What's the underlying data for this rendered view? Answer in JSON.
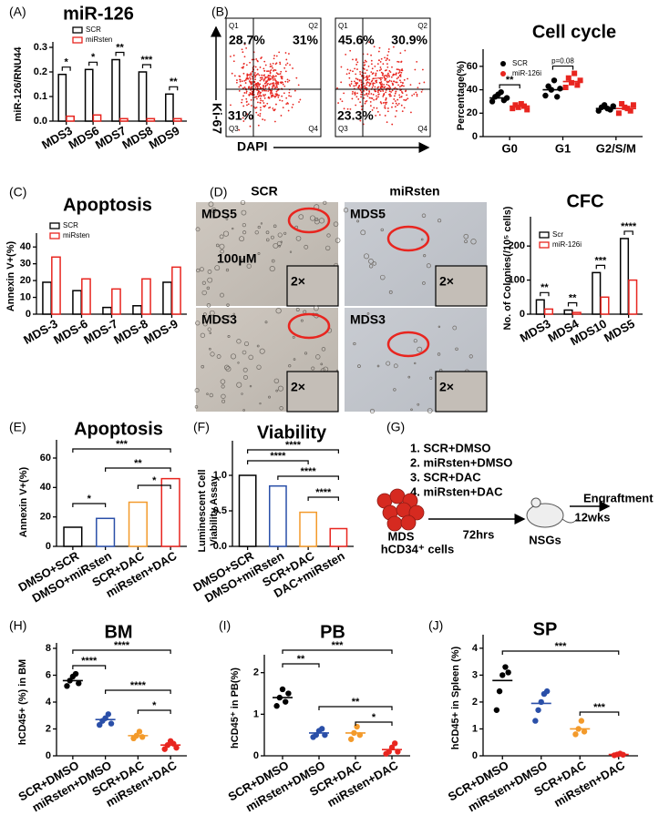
{
  "chart_data": [
    {
      "type": "bar",
      "panel_label": "(A)",
      "title": "miR-126",
      "y_label": "miR-126/RNU44",
      "categories": [
        "MDS3",
        "MDS6",
        "MDS7",
        "MDS8",
        "MDS9"
      ],
      "series": [
        {
          "name": "SCR",
          "color": "#000000",
          "values": [
            0.19,
            0.21,
            0.25,
            0.2,
            0.11
          ]
        },
        {
          "name": "miRsten",
          "color": "#e8251f",
          "values": [
            0.02,
            0.025,
            0.01,
            0.01,
            0.01
          ]
        }
      ],
      "ylim": [
        0,
        0.3
      ],
      "yticks": [
        {
          "value": 0,
          "label": "0.0"
        },
        {
          "value": 0.1,
          "label": "0.1"
        },
        {
          "value": 0.2,
          "label": "0.2"
        },
        {
          "value": 0.3,
          "label": "0.3"
        }
      ],
      "significance": [
        "*",
        "*",
        "**",
        "***",
        "**"
      ],
      "legend": "upper left"
    },
    {
      "type": "dot",
      "panel_label": "(B)",
      "title": "Cell cycle",
      "y_label": "Percentage(%)",
      "categories": [
        "G0",
        "G1",
        "G2/S/M"
      ],
      "series": [
        {
          "name": "SCR",
          "color": "#000000",
          "values": [
            33,
            40,
            24
          ],
          "points": [
            [
              30,
              34,
              36,
              38,
              31,
              33
            ],
            [
              35,
              43,
              40,
              48,
              34,
              41
            ],
            [
              22,
              25,
              27,
              24,
              23,
              26
            ]
          ]
        },
        {
          "name": "miR-126i",
          "color": "#e8251f",
          "values": [
            26,
            47,
            24
          ],
          "points": [
            [
              24,
              27,
              25,
              28,
              26,
              23
            ],
            [
              42,
              50,
              46,
              54,
              44,
              48
            ],
            [
              20,
              28,
              25,
              24,
              22,
              27
            ]
          ]
        }
      ],
      "ylim": [
        0,
        70
      ],
      "yticks": [
        0,
        20,
        40,
        60
      ],
      "significance": [
        "**",
        "p=0.08"
      ],
      "legend": "upper left"
    },
    {
      "type": "bar",
      "panel_label": "(C)",
      "title": "Apoptosis",
      "y_label": "Annexin V+(%)",
      "categories": [
        "MDS-3",
        "MDS-6",
        "MDS-7",
        "MDS-8",
        "MDS-9"
      ],
      "series": [
        {
          "name": "SCR",
          "color": "#000000",
          "values": [
            19,
            14,
            4,
            5,
            19
          ]
        },
        {
          "name": "miRsten",
          "color": "#e8251f",
          "values": [
            34,
            21,
            15,
            21,
            28
          ]
        }
      ],
      "ylim": [
        0,
        45
      ],
      "yticks": [
        0,
        10,
        20,
        30,
        40
      ],
      "legend": "upper left"
    },
    {
      "type": "bar",
      "panel_label": "(D)",
      "title": "CFC",
      "y_label": "No. of Colonies(/10⁵ cells)",
      "categories": [
        "MDS3",
        "MDS4",
        "MDS10",
        "MDS5"
      ],
      "series": [
        {
          "name": "Scr",
          "color": "#000000",
          "values": [
            42,
            12,
            122,
            222
          ]
        },
        {
          "name": "miR-126i",
          "color": "#e8251f",
          "values": [
            15,
            5,
            50,
            100
          ]
        }
      ],
      "ylim": [
        0,
        270
      ],
      "yticks": [
        0,
        100,
        200
      ],
      "significance": [
        "**",
        "**",
        "***",
        "****"
      ],
      "legend": "upper left"
    },
    {
      "type": "bar",
      "panel_label": "(E)",
      "title": "Apoptosis",
      "y_label": "Annexin V+(%)",
      "categories": [
        "DMSO+SCR",
        "DMSO+miRsten",
        "SCR+DAC",
        "miRsten+DAC"
      ],
      "values": [
        13,
        19,
        30,
        46
      ],
      "colors": [
        "#000000",
        "#2a4fa8",
        "#f39a2b",
        "#e8251f"
      ],
      "ylim": [
        0,
        60
      ],
      "yticks": [
        0,
        20,
        40,
        60
      ],
      "significance": [
        "***",
        "**",
        "*",
        "*"
      ]
    },
    {
      "type": "bar",
      "panel_label": "(F)",
      "title": "Viability",
      "y_label": [
        "Luminescent Cell",
        "Viability Assay"
      ],
      "categories": [
        "DMSO+SCR",
        "DMSO+miRsten",
        "SCR+DAC",
        "DAC+miRsten"
      ],
      "values": [
        1.0,
        0.85,
        0.48,
        0.25
      ],
      "colors": [
        "#000000",
        "#2a4fa8",
        "#f39a2b",
        "#e8251f"
      ],
      "ylim": [
        0,
        1
      ],
      "yticks": [
        {
          "value": 0,
          "label": "0.0"
        },
        {
          "value": 0.5,
          "label": "0.5"
        },
        {
          "value": 1,
          "label": "1.0"
        }
      ],
      "significance": [
        "****",
        "****",
        "****",
        "****"
      ]
    },
    {
      "type": "dot",
      "panel_label": "(H)",
      "title": "BM",
      "y_label": "hCD45+ (%) in BM",
      "categories": [
        "SCR+DMSO",
        "miRsten+DMSO",
        "SCR+DAC",
        "miRsten+DAC"
      ],
      "values": [
        5.6,
        2.7,
        1.5,
        0.8
      ],
      "colors": [
        "#000000",
        "#2a4fa8",
        "#f39a2b",
        "#e8251f"
      ],
      "points": [
        [
          5.2,
          5.6,
          5.9,
          6.1,
          5.4
        ],
        [
          2.3,
          2.6,
          2.8,
          3.1,
          2.4
        ],
        [
          1.3,
          1.5,
          1.8,
          1.4
        ],
        [
          0.5,
          0.8,
          1.1,
          0.9,
          0.6
        ]
      ],
      "ylim": [
        0,
        8
      ],
      "yticks": [
        0,
        2,
        4,
        6,
        8
      ],
      "significance": [
        "****",
        "****",
        "****",
        "*"
      ]
    },
    {
      "type": "dot",
      "panel_label": "(I)",
      "title": "PB",
      "y_label": "hCD45⁺ in PB(%)",
      "categories": [
        "SCR+DMSO",
        "miRsten+DMSO",
        "SCR+DAC",
        "miRsten+DAC"
      ],
      "values": [
        1.4,
        0.55,
        0.55,
        0.15
      ],
      "colors": [
        "#000000",
        "#2a4fa8",
        "#f39a2b",
        "#e8251f"
      ],
      "points": [
        [
          1.2,
          1.4,
          1.6,
          1.3,
          1.5
        ],
        [
          0.45,
          0.5,
          0.6,
          0.65,
          0.5
        ],
        [
          0.4,
          0.55,
          0.7,
          0.5
        ],
        [
          0.05,
          0.1,
          0.2,
          0.3,
          0.1
        ]
      ],
      "ylim": [
        0,
        2.3
      ],
      "yticks": [
        0,
        1,
        2
      ],
      "significance": [
        "***",
        "**",
        "**",
        "*"
      ]
    },
    {
      "type": "dot",
      "panel_label": "(J)",
      "title": "SP",
      "y_label": "hCD45+ in Spleen (%)",
      "categories": [
        "SCR+DMSO",
        "miRsten+DMSO",
        "SCR+DAC",
        "miRsten+DAC"
      ],
      "values": [
        2.8,
        1.95,
        1.0,
        0.05
      ],
      "colors": [
        "#000000",
        "#2a4fa8",
        "#f39a2b",
        "#e8251f"
      ],
      "points": [
        [
          1.7,
          2.4,
          3.0,
          3.3,
          3.1
        ],
        [
          1.3,
          1.7,
          2.0,
          2.3,
          2.4
        ],
        [
          0.8,
          1.0,
          1.3,
          0.9
        ],
        [
          0.02,
          0.05,
          0.08,
          0.04
        ]
      ],
      "ylim": [
        0,
        4.3
      ],
      "yticks": [
        0,
        1,
        2,
        3,
        4
      ],
      "significance": [
        "***",
        "***"
      ]
    }
  ],
  "flow_plots": {
    "x_label": "DAPI",
    "y_label": "Ki-67",
    "plots": [
      {
        "quadrants": [
          "Q1",
          "Q2",
          "Q3",
          "Q4"
        ],
        "percentages": [
          "28.7%",
          "31%",
          "31%"
        ]
      },
      {
        "quadrants": [
          "Q1",
          "Q2",
          "Q3",
          "Q4"
        ],
        "percentages": [
          "45.6%",
          "30.9%",
          "23.3%"
        ]
      }
    ]
  },
  "colony_images": {
    "columns": [
      "SCR",
      "miRsten"
    ],
    "rows": [
      "MDS5",
      "MDS3"
    ],
    "zoom": "2×",
    "scale_bar": "100μM"
  },
  "diagram": {
    "panel_label": "(G)",
    "steps": [
      "1.  SCR+DMSO",
      "2.  miRsten+DMSO",
      "3.  SCR+DAC",
      "4.  miRsten+DAC"
    ],
    "cells": [
      "MDS",
      "hCD34⁺ cells"
    ],
    "time1": "72hrs",
    "mice": "NSGs",
    "time2": "12wks",
    "outcome": "Engraftment"
  }
}
